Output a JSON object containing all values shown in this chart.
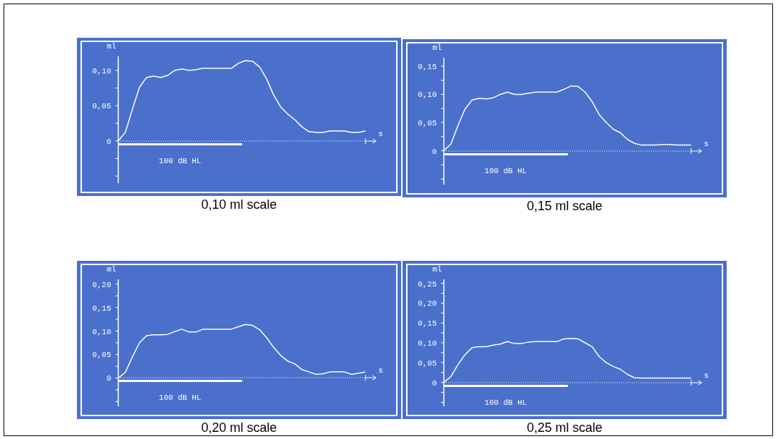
{
  "chart_data": [
    {
      "type": "line",
      "title": "0,10 ml scale",
      "xlabel": "s",
      "ylabel": "ml",
      "annotations": [
        "100 dB HL"
      ],
      "categories": [
        null,
        null,
        null,
        null,
        null,
        null,
        null,
        null,
        null,
        null,
        null,
        null,
        null,
        null,
        null,
        null,
        null,
        null,
        null,
        null,
        null,
        null,
        null,
        null,
        null,
        null,
        null,
        null,
        null,
        null,
        null,
        null,
        null,
        null,
        null,
        null
      ],
      "series": [
        {
          "color": "#ffffff",
          "values": [
            0,
            0.012,
            0.045,
            0.076,
            0.09,
            0.092,
            0.09,
            0.093,
            0.1,
            0.102,
            0.1,
            0.101,
            0.103,
            0.103,
            0.103,
            0.103,
            0.103,
            0.11,
            0.114,
            0.113,
            0.105,
            0.088,
            0.065,
            0.048,
            0.038,
            0.03,
            0.02,
            0.013,
            0.012,
            0.012,
            0.014,
            0.014,
            0.014,
            0.012,
            0.012,
            0.014
          ]
        }
      ],
      "ylim": [
        -0.06,
        0.12
      ],
      "yticks": [
        {
          "value": -0.05,
          "label": null
        },
        {
          "value": -0.025,
          "label": null
        },
        {
          "value": 0,
          "label": "0"
        },
        {
          "value": 0.025,
          "label": null
        },
        {
          "value": 0.05,
          "label": "0,05"
        },
        {
          "value": 0.075,
          "label": null
        },
        {
          "value": 0.1,
          "label": "0,10"
        }
      ]
    },
    {
      "type": "line",
      "title": "0,15 ml scale",
      "xlabel": "s",
      "ylabel": "ml",
      "annotations": [
        "100 dB HL"
      ],
      "categories": [
        null,
        null,
        null,
        null,
        null,
        null,
        null,
        null,
        null,
        null,
        null,
        null,
        null,
        null,
        null,
        null,
        null,
        null,
        null,
        null,
        null,
        null,
        null,
        null,
        null,
        null,
        null,
        null,
        null,
        null,
        null,
        null,
        null,
        null,
        null,
        null
      ],
      "series": [
        {
          "color": "#ffffff",
          "values": [
            0,
            0.012,
            0.045,
            0.074,
            0.09,
            0.093,
            0.092,
            0.094,
            0.1,
            0.104,
            0.1,
            0.1,
            0.102,
            0.104,
            0.104,
            0.104,
            0.104,
            0.109,
            0.115,
            0.114,
            0.104,
            0.087,
            0.064,
            0.05,
            0.038,
            0.032,
            0.02,
            0.013,
            0.01,
            0.01,
            0.01,
            0.011,
            0.011,
            0.01,
            0.01,
            0.01
          ]
        }
      ],
      "ylim": [
        -0.06,
        0.165
      ],
      "yticks": [
        {
          "value": -0.05,
          "label": null
        },
        {
          "value": -0.025,
          "label": null
        },
        {
          "value": 0,
          "label": "0"
        },
        {
          "value": 0.025,
          "label": null
        },
        {
          "value": 0.05,
          "label": "0,05"
        },
        {
          "value": 0.075,
          "label": null
        },
        {
          "value": 0.1,
          "label": "0,10"
        },
        {
          "value": 0.125,
          "label": null
        },
        {
          "value": 0.15,
          "label": "0,15"
        }
      ]
    },
    {
      "type": "line",
      "title": "0,20 ml scale",
      "xlabel": "s",
      "ylabel": "ml",
      "annotations": [
        "100 dB HL"
      ],
      "categories": [
        null,
        null,
        null,
        null,
        null,
        null,
        null,
        null,
        null,
        null,
        null,
        null,
        null,
        null,
        null,
        null,
        null,
        null,
        null,
        null,
        null,
        null,
        null,
        null,
        null,
        null,
        null,
        null,
        null,
        null,
        null,
        null,
        null,
        null,
        null,
        null
      ],
      "series": [
        {
          "color": "#ffffff",
          "values": [
            0,
            0.012,
            0.045,
            0.075,
            0.09,
            0.092,
            0.092,
            0.093,
            0.099,
            0.104,
            0.098,
            0.098,
            0.104,
            0.104,
            0.104,
            0.104,
            0.104,
            0.109,
            0.114,
            0.112,
            0.103,
            0.086,
            0.065,
            0.048,
            0.036,
            0.03,
            0.018,
            0.013,
            0.008,
            0.009,
            0.013,
            0.013,
            0.013,
            0.008,
            0.01,
            0.013
          ]
        }
      ],
      "ylim": [
        -0.06,
        0.21
      ],
      "yticks": [
        {
          "value": -0.05,
          "label": null
        },
        {
          "value": -0.025,
          "label": null
        },
        {
          "value": 0,
          "label": "0"
        },
        {
          "value": 0.025,
          "label": null
        },
        {
          "value": 0.05,
          "label": "0,05"
        },
        {
          "value": 0.075,
          "label": null
        },
        {
          "value": 0.1,
          "label": "0,10"
        },
        {
          "value": 0.125,
          "label": null
        },
        {
          "value": 0.15,
          "label": "0,15"
        },
        {
          "value": 0.175,
          "label": null
        },
        {
          "value": 0.2,
          "label": "0,20"
        }
      ]
    },
    {
      "type": "line",
      "title": "0,25 ml scale",
      "xlabel": "s",
      "ylabel": "ml",
      "annotations": [
        "100 dB HL"
      ],
      "categories": [
        null,
        null,
        null,
        null,
        null,
        null,
        null,
        null,
        null,
        null,
        null,
        null,
        null,
        null,
        null,
        null,
        null,
        null,
        null,
        null,
        null,
        null,
        null,
        null,
        null,
        null,
        null,
        null,
        null,
        null,
        null,
        null,
        null,
        null,
        null,
        null
      ],
      "series": [
        {
          "color": "#ffffff",
          "values": [
            0,
            0.015,
            0.045,
            0.07,
            0.088,
            0.09,
            0.09,
            0.094,
            0.097,
            0.103,
            0.098,
            0.098,
            0.102,
            0.103,
            0.103,
            0.103,
            0.103,
            0.11,
            0.111,
            0.11,
            0.1,
            0.09,
            0.065,
            0.05,
            0.04,
            0.033,
            0.02,
            0.012,
            0.011,
            0.011,
            0.011,
            0.011,
            0.011,
            0.011,
            0.011,
            0.011
          ]
        }
      ],
      "ylim": [
        -0.06,
        0.26
      ],
      "yticks": [
        {
          "value": -0.05,
          "label": null
        },
        {
          "value": -0.025,
          "label": null
        },
        {
          "value": 0,
          "label": "0"
        },
        {
          "value": 0.025,
          "label": null
        },
        {
          "value": 0.05,
          "label": "0,05"
        },
        {
          "value": 0.075,
          "label": null
        },
        {
          "value": 0.1,
          "label": "0,10"
        },
        {
          "value": 0.125,
          "label": null
        },
        {
          "value": 0.15,
          "label": "0,15"
        },
        {
          "value": 0.175,
          "label": null
        },
        {
          "value": 0.2,
          "label": "0,20"
        },
        {
          "value": 0.225,
          "label": null
        },
        {
          "value": 0.25,
          "label": "0,25"
        }
      ]
    }
  ]
}
